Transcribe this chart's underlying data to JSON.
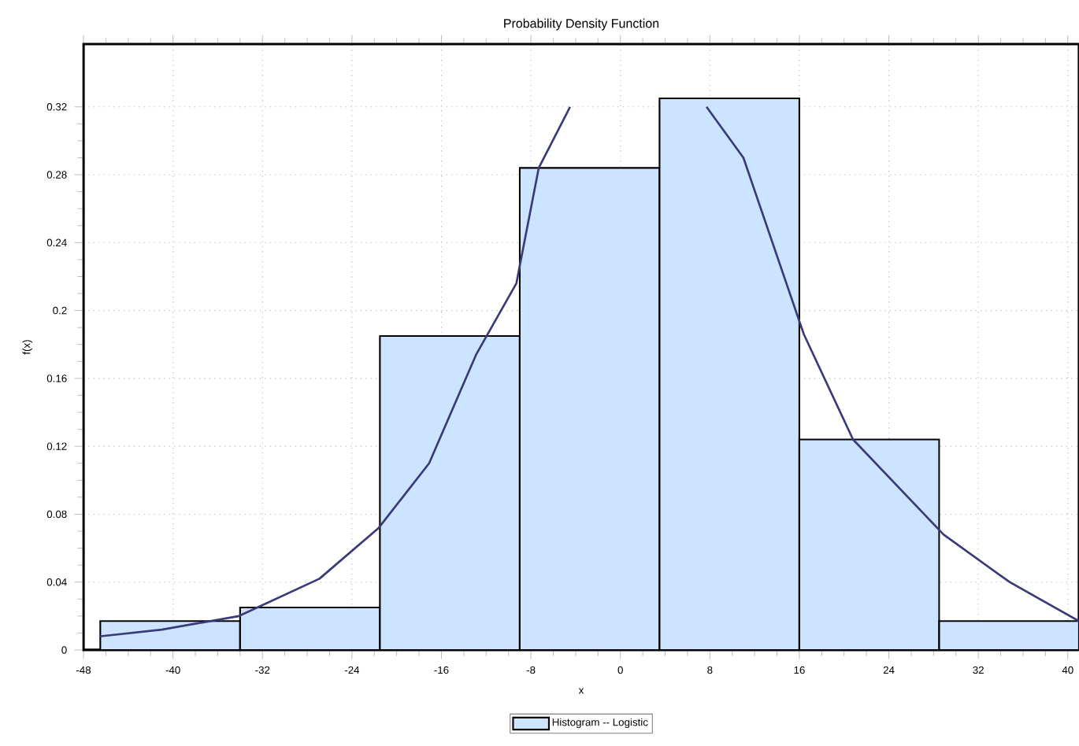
{
  "chart_data": {
    "type": "histogram",
    "title": "Probability Density Function",
    "xlabel": "x",
    "ylabel": "f(x)",
    "xlim": [
      -48,
      41
    ],
    "xticks": [
      -48,
      -40,
      -32,
      -24,
      -16,
      -8,
      0,
      8,
      16,
      24,
      32,
      40
    ],
    "ylim": [
      0,
      0.357
    ],
    "yticks": [
      0,
      0.04,
      0.08,
      0.12,
      0.16,
      0.2,
      0.24,
      0.28,
      0.32
    ],
    "grid": true,
    "legend": "bottom",
    "series": [
      {
        "name": "Histogram -- Logistic",
        "color": "#cce4ff",
        "bins": [
          -46.5,
          -34,
          -21.5,
          -9,
          3.5,
          16,
          28.5,
          41
        ],
        "values": [
          0.017,
          0.025,
          0.185,
          0.284,
          0.325,
          0.124,
          0.017
        ]
      },
      {
        "type": "line",
        "color": "#3a3a7a",
        "x": [
          -46.6,
          -41,
          -34.1,
          -26.9,
          -21.6,
          -17.1,
          -12.9,
          -9.3,
          -7.3,
          -4.5,
          1.5,
          7.7,
          11.0,
          16.4,
          20.8,
          28.9,
          34.8,
          41
        ],
        "values": [
          0.008,
          0.012,
          0.02,
          0.042,
          0.072,
          0.11,
          0.174,
          0.216,
          0.284,
          0.32,
          null,
          0.32,
          0.29,
          0.186,
          0.124,
          0.068,
          0.04,
          0.017
        ]
      }
    ]
  }
}
